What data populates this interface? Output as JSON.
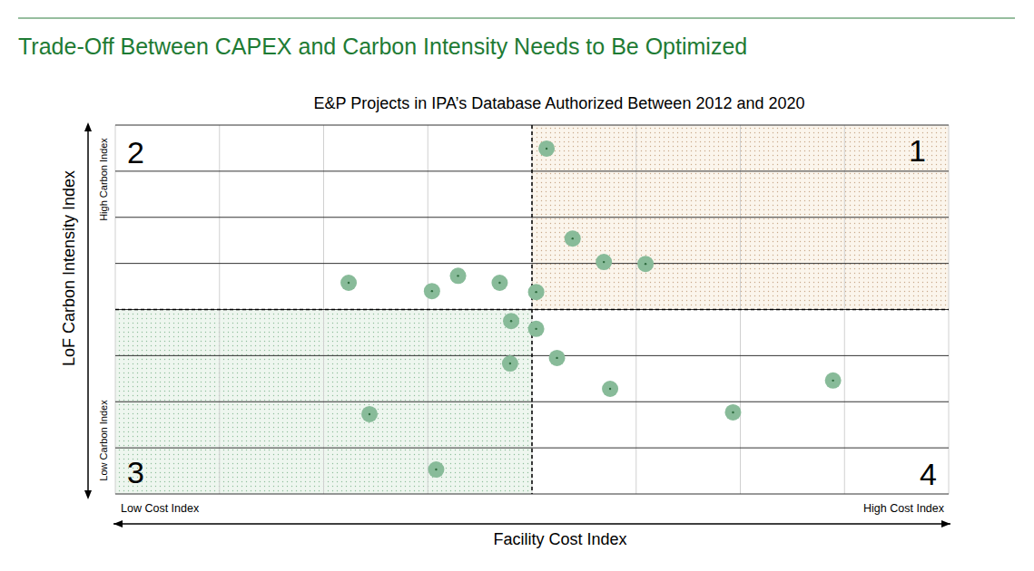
{
  "chart_data": {
    "type": "scatter",
    "title": "Trade-Off Between CAPEX and Carbon Intensity Needs to Be Optimized",
    "subtitle": "E&P Projects in IPA’s Database Authorized Between 2012 and 2020",
    "x_label": "Facility Cost Index",
    "y_label": "LoF Carbon Intensity Index",
    "x_low_label": "Low Cost Index",
    "x_high_label": "High Cost Index",
    "y_high_label": "High Carbon Index",
    "y_low_label": "Low Carbon Index",
    "quadrant_labels": [
      "1",
      "2",
      "3",
      "4"
    ],
    "thresholds": {
      "x": 4,
      "y": 4
    },
    "xlim": [
      0,
      8
    ],
    "ylim": [
      0,
      8
    ],
    "xticks": [
      0,
      1,
      2,
      3,
      4,
      5,
      6,
      7,
      8
    ],
    "yticks": [
      0,
      1,
      2,
      3,
      4,
      5,
      6,
      7,
      8
    ],
    "grid": true,
    "tick_labels": false,
    "series": [
      {
        "name": "E&P Projects",
        "color": "#88bb99",
        "marker": "circle",
        "x": [
          4.14,
          4.39,
          4.69,
          5.09,
          2.24,
          3.04,
          3.29,
          3.69,
          4.04,
          3.8,
          4.04,
          4.24,
          3.79,
          4.75,
          6.89,
          2.44,
          5.93,
          3.08
        ],
        "values": [
          7.49,
          5.54,
          5.03,
          4.99,
          4.58,
          4.4,
          4.73,
          4.58,
          4.38,
          3.75,
          3.58,
          2.95,
          2.83,
          2.28,
          2.46,
          1.73,
          1.77,
          0.53
        ]
      }
    ]
  }
}
